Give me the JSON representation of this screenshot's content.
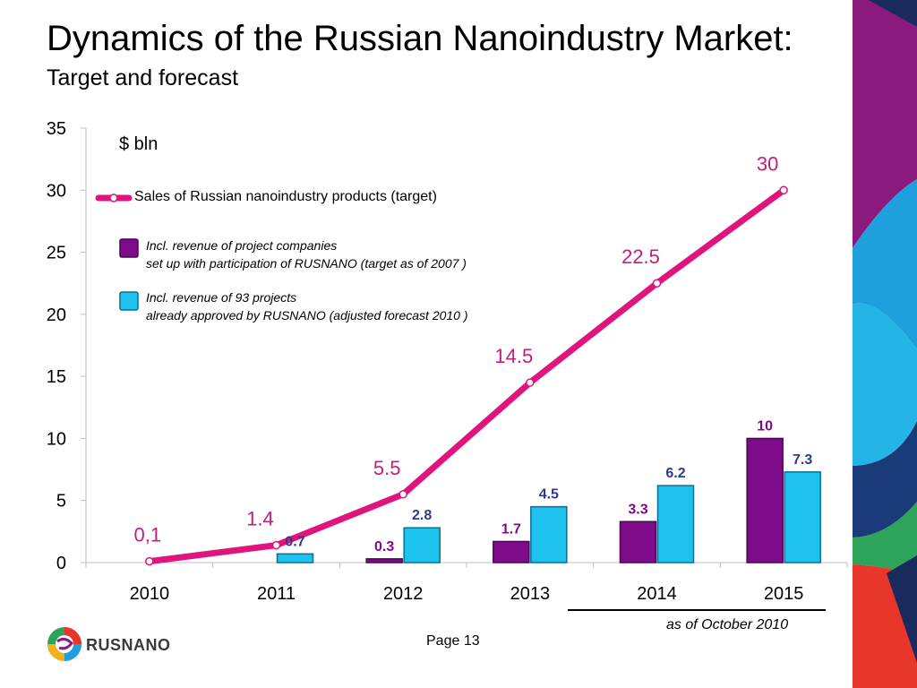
{
  "slide": {
    "title": "Dynamics of the Russian Nanoindustry Market:",
    "subtitle": "Target and forecast",
    "as_of": "as of October 2010",
    "page_label": "Page 13",
    "logo_text": "RUSNANO"
  },
  "colors": {
    "line": "#e0147c",
    "bar_purple": "#7e0c8a",
    "bar_cyan": "#1ec2ef",
    "label_purple": "#7e0c8a",
    "label_blue": "#2b3a8c",
    "label_pink": "#c41e7a"
  },
  "chart_data": {
    "type": "bar",
    "unit": "$ bln",
    "categories": [
      "2010",
      "2011",
      "2012",
      "2013",
      "2014",
      "2015"
    ],
    "ylim": [
      0,
      35
    ],
    "yticks": [
      "0",
      "5",
      "10",
      "15",
      "20",
      "25",
      "30",
      "35"
    ],
    "ytick_values": [
      0,
      5,
      10,
      15,
      20,
      25,
      30,
      35
    ],
    "grid": false,
    "legend": {
      "line_label": "Sales of Russian nanoindustry products (target)",
      "purple_label_line1": "Incl. revenue of project companies",
      "purple_label_line2": "set up with participation of RUSNANO (target as of 2007 )",
      "cyan_label_line1": "Incl. revenue of 93 projects",
      "cyan_label_line2": "already approved by RUSNANO (adjusted forecast 2010 )"
    },
    "series": [
      {
        "name": "Sales of Russian nanoindustry products (target)",
        "kind": "line",
        "values": [
          0.1,
          1.4,
          5.5,
          14.5,
          22.5,
          30
        ],
        "labels": [
          "0,1",
          "1.4",
          "5.5",
          "14.5",
          "22.5",
          "30"
        ]
      },
      {
        "name": "Incl. revenue of project companies set up with participation of RUSNANO (target as of 2007 )",
        "kind": "bar",
        "values": [
          null,
          null,
          0.3,
          1.7,
          3.3,
          10
        ],
        "labels": [
          "",
          "",
          "0.3",
          "1.7",
          "3.3",
          "10"
        ]
      },
      {
        "name": "Incl. revenue of 93 projects already approved by RUSNANO (adjusted forecast 2010 )",
        "kind": "bar",
        "values": [
          null,
          0.7,
          2.8,
          4.5,
          6.2,
          7.3
        ],
        "labels": [
          "",
          "0.7",
          "2.8",
          "4.5",
          "6.2",
          "7.3"
        ]
      }
    ]
  }
}
